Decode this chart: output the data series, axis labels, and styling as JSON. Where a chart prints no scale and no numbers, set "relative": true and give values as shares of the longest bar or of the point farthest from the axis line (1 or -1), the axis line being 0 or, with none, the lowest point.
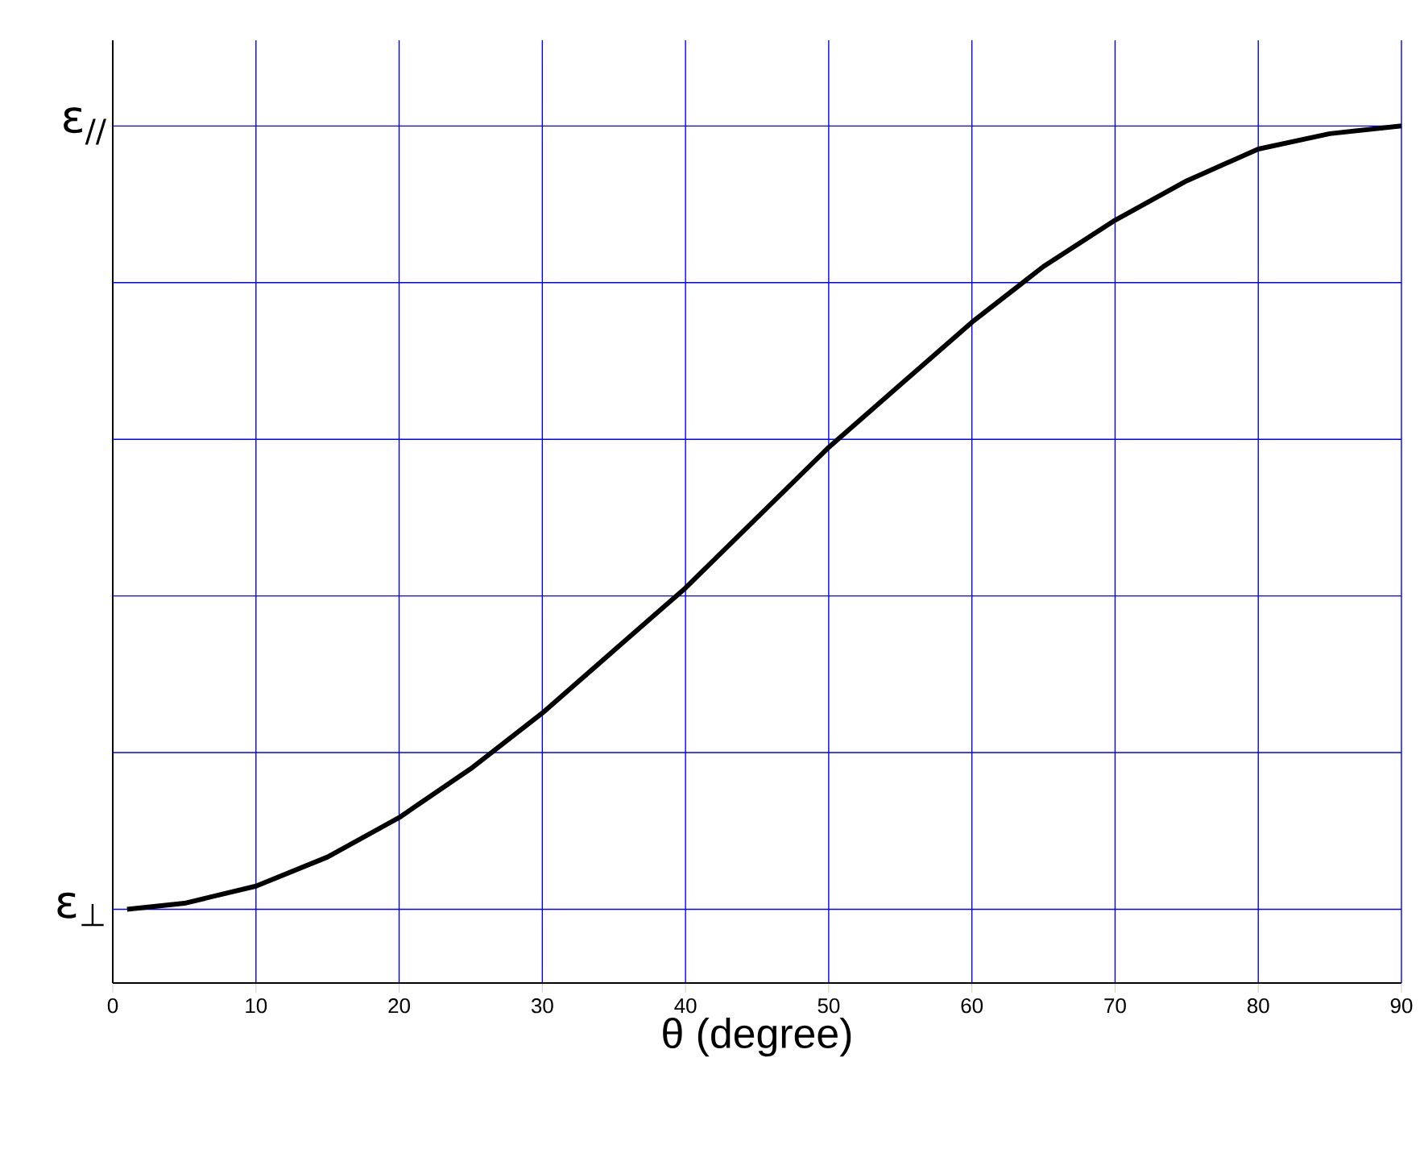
{
  "chart_data": {
    "type": "line",
    "xlabel": "θ (degree)",
    "relative": true,
    "x": [
      1,
      5,
      10,
      15,
      20,
      25,
      30,
      35,
      40,
      45,
      50,
      55,
      60,
      65,
      70,
      75,
      80,
      85,
      90
    ],
    "series": [
      {
        "color": "#000000",
        "values": [
          0.086,
          0.093,
          0.113,
          0.147,
          0.193,
          0.25,
          0.315,
          0.388,
          0.461,
          0.543,
          0.625,
          0.698,
          0.771,
          0.836,
          0.89,
          0.936,
          0.973,
          0.991,
          1.0
        ]
      }
    ],
    "xlim": [
      0,
      90
    ],
    "xticks": [
      0,
      10,
      20,
      30,
      40,
      50,
      60,
      70,
      80,
      90
    ],
    "annotations": [
      "ε$_{⊥}$",
      "ε$_{//}$"
    ],
    "grid": true,
    "marker": "none",
    "line_style": "solid"
  }
}
